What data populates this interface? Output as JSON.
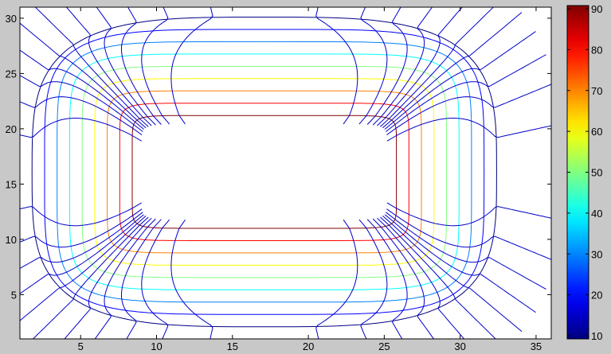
{
  "chart_data": {
    "type": "contour",
    "title": "",
    "xlabel": "",
    "ylabel": "",
    "xlim": [
      1,
      36
    ],
    "ylim": [
      1,
      31
    ],
    "xticks": [
      5,
      10,
      15,
      20,
      25,
      30,
      35
    ],
    "yticks": [
      5,
      10,
      15,
      20,
      25,
      30
    ],
    "hole": {
      "x": [
        9,
        25.2
      ],
      "y": [
        12.1,
        20.1
      ]
    },
    "levels": [
      10,
      20,
      30,
      40,
      50,
      60,
      70,
      80,
      90
    ],
    "colormap": "jet",
    "streamline_color": "#0000cc",
    "colorbar": {
      "range": [
        10,
        90
      ],
      "ticks": [
        10,
        20,
        30,
        40,
        50,
        60,
        70,
        80,
        90
      ]
    },
    "grid": false
  }
}
